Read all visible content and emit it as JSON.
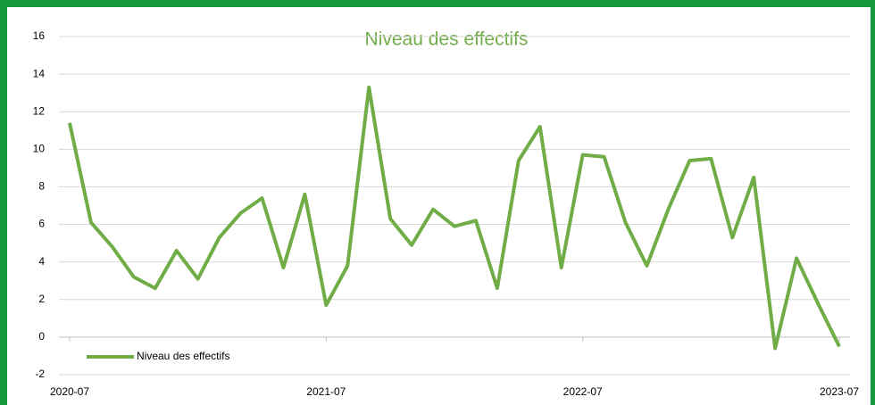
{
  "chart_data": {
    "type": "line",
    "title": "Niveau des effectifs",
    "x": [
      "2020-07",
      "2020-08",
      "2020-09",
      "2020-10",
      "2020-11",
      "2020-12",
      "2021-01",
      "2021-02",
      "2021-03",
      "2021-04",
      "2021-05",
      "2021-06",
      "2021-07",
      "2021-08",
      "2021-09",
      "2021-10",
      "2021-11",
      "2021-12",
      "2022-01",
      "2022-02",
      "2022-03",
      "2022-04",
      "2022-05",
      "2022-06",
      "2022-07",
      "2022-08",
      "2022-09",
      "2022-10",
      "2022-11",
      "2022-12",
      "2023-01",
      "2023-02",
      "2023-03",
      "2023-04",
      "2023-05",
      "2023-06",
      "2023-07"
    ],
    "series": [
      {
        "name": "Niveau des effectifs",
        "color": "#70ad47",
        "values": [
          11.4,
          6.1,
          4.8,
          3.2,
          2.6,
          4.6,
          3.1,
          5.3,
          6.6,
          7.4,
          3.7,
          7.6,
          1.7,
          3.8,
          13.3,
          6.3,
          4.9,
          6.8,
          5.9,
          6.2,
          2.6,
          9.4,
          11.2,
          3.7,
          9.7,
          9.6,
          6.1,
          3.8,
          6.8,
          9.4,
          9.5,
          5.3,
          8.5,
          -0.6,
          4.2,
          1.8,
          -0.5
        ]
      }
    ],
    "xticks": [
      "2020-07",
      "2021-07",
      "2022-07",
      "2023-07"
    ],
    "ylim": [
      -2,
      16
    ],
    "yticks": [
      -2,
      0,
      2,
      4,
      6,
      8,
      10,
      12,
      14,
      16
    ],
    "grid": true,
    "legend": "bottom-left"
  }
}
